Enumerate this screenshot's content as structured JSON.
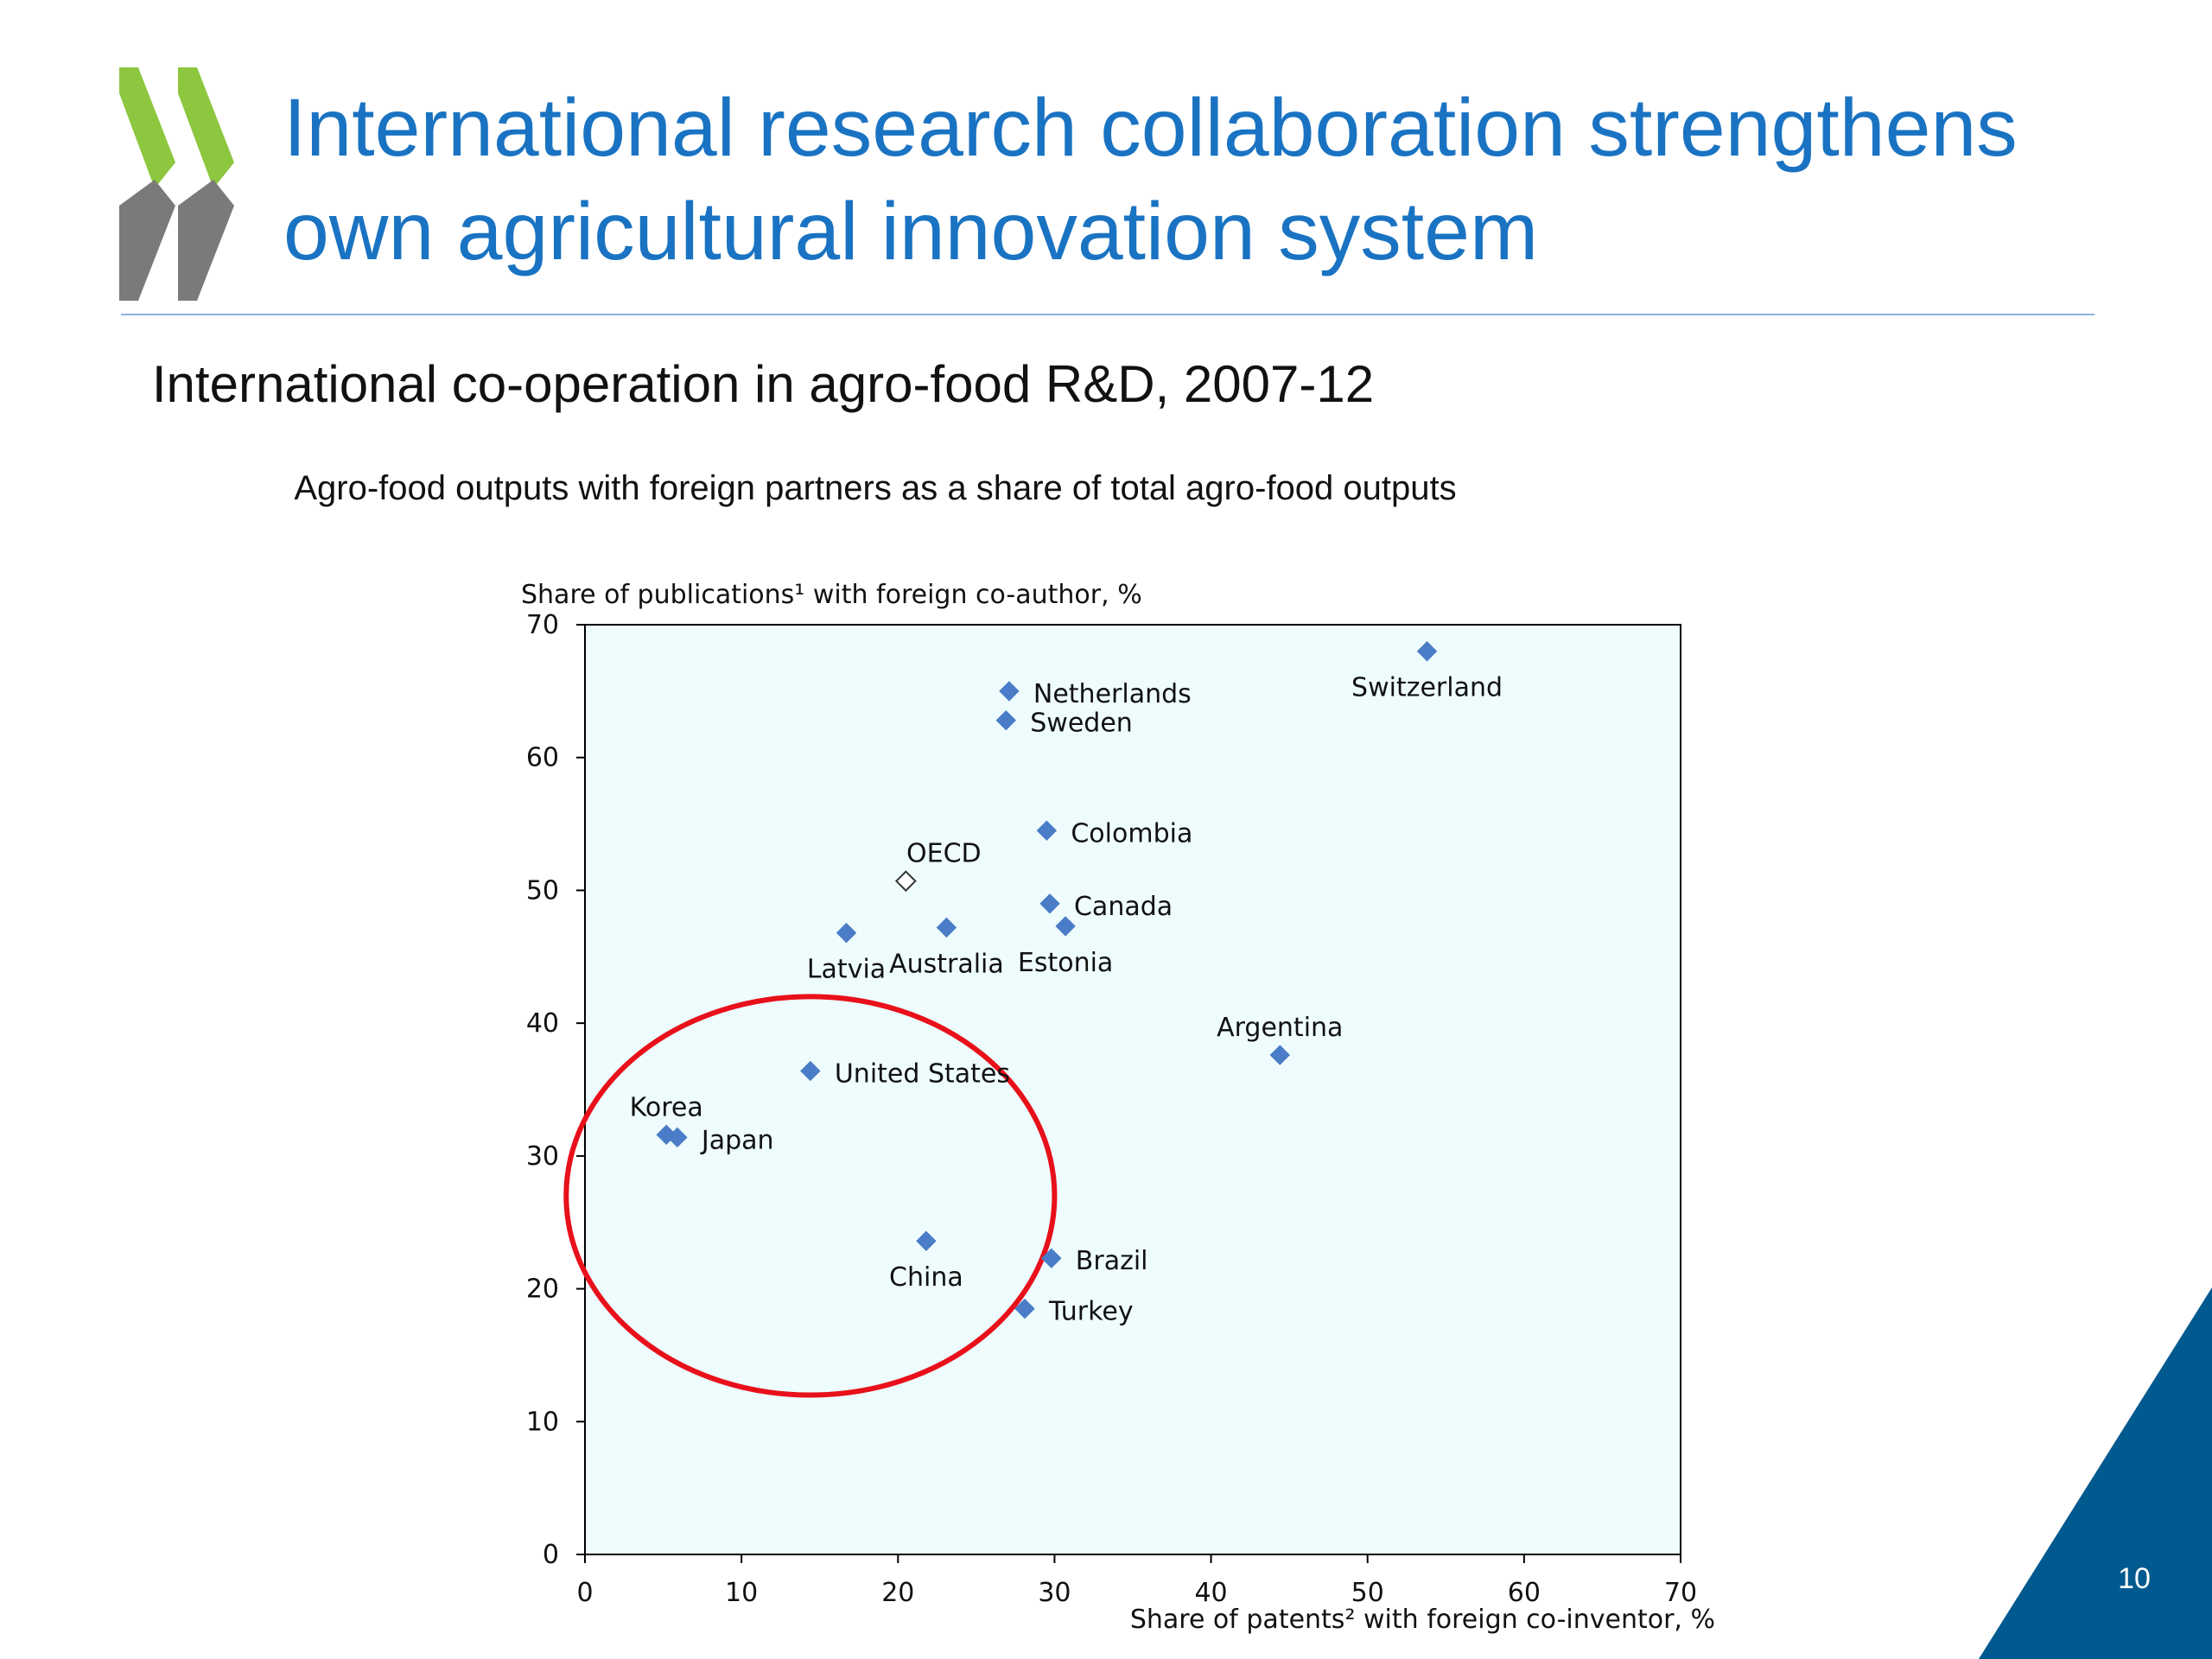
{
  "slide": {
    "title_line1": "International research collaboration strengthens",
    "title_line2": "own agricultural innovation system",
    "page_number": "10",
    "colors": {
      "title": "#1a73c2",
      "logo_green": "#8dc63f",
      "logo_gray": "#7a7a7a",
      "corner": "#00598f"
    }
  },
  "chart_data": {
    "type": "scatter",
    "title": "International co-operation in agro-food R&D, 2007-12",
    "subtitle": "Agro-food outputs with foreign partners as a share of total agro-food outputs",
    "ylabel": "Share of publications¹ with foreign co-author, %",
    "xlabel": "Share of patents² with foreign co-inventor, %",
    "xlim": [
      0,
      70
    ],
    "ylim": [
      0,
      70
    ],
    "xticks": [
      "0",
      "10",
      "20",
      "30",
      "40",
      "50",
      "60",
      "70"
    ],
    "yticks": [
      "0",
      "10",
      "20",
      "30",
      "40",
      "50",
      "60",
      "70"
    ],
    "plot_background": "#eefcfd",
    "marker_color": "#4a7cc7",
    "points": [
      {
        "label": "Switzerland",
        "x": 53.8,
        "y": 68.0,
        "label_pos": "below"
      },
      {
        "label": "Netherlands",
        "x": 27.1,
        "y": 65.0,
        "label_pos": "right"
      },
      {
        "label": "Sweden",
        "x": 26.9,
        "y": 62.8,
        "label_pos": "right"
      },
      {
        "label": "Colombia",
        "x": 29.5,
        "y": 54.5,
        "label_pos": "right"
      },
      {
        "label": "OECD",
        "x": 20.5,
        "y": 50.7,
        "label_pos": "above",
        "hollow": true
      },
      {
        "label": "Canada",
        "x": 29.7,
        "y": 49.0,
        "label_pos": "right"
      },
      {
        "label": "Latvia",
        "x": 16.7,
        "y": 46.8,
        "label_pos": "below"
      },
      {
        "label": "Australia",
        "x": 23.1,
        "y": 47.2,
        "label_pos": "below"
      },
      {
        "label": "Estonia",
        "x": 30.7,
        "y": 47.3,
        "label_pos": "below"
      },
      {
        "label": "Argentina",
        "x": 44.4,
        "y": 37.6,
        "label_pos": "above"
      },
      {
        "label": "United States",
        "x": 14.4,
        "y": 36.4,
        "label_pos": "right"
      },
      {
        "label": "Korea",
        "x": 5.2,
        "y": 31.6,
        "label_pos": "above"
      },
      {
        "label": "Japan",
        "x": 5.9,
        "y": 31.4,
        "label_pos": "right"
      },
      {
        "label": "China",
        "x": 21.8,
        "y": 23.6,
        "label_pos": "below"
      },
      {
        "label": "Brazil",
        "x": 29.8,
        "y": 22.3,
        "label_pos": "right"
      },
      {
        "label": "Turkey",
        "x": 28.1,
        "y": 18.5,
        "label_pos": "right"
      }
    ],
    "annotation": {
      "shape": "ellipse",
      "color": "#e8101a",
      "center_x": 14.4,
      "center_y": 27,
      "radius_x": 15.6,
      "radius_y": 15
    }
  }
}
